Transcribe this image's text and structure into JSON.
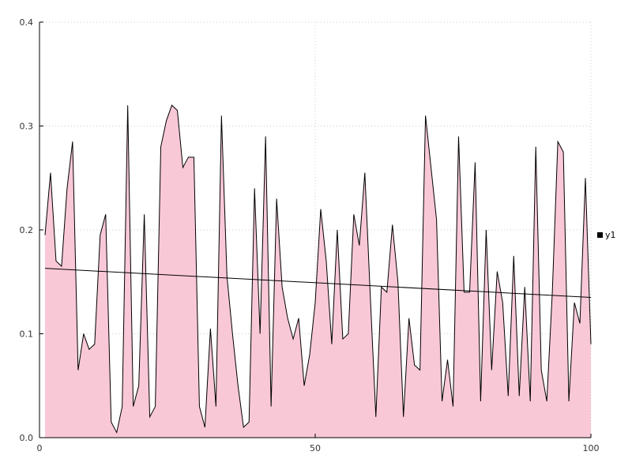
{
  "chart_data": {
    "type": "area",
    "title": "",
    "xlabel": "",
    "ylabel": "",
    "xlim": [
      0,
      100
    ],
    "ylim": [
      0,
      0.4
    ],
    "xticks": [
      0,
      50,
      100
    ],
    "xtick_labels": [
      "0",
      "50",
      "100"
    ],
    "yticks": [
      0,
      0.1,
      0.2,
      0.3,
      0.4
    ],
    "ytick_labels": [
      "0.0",
      "0.1",
      "0.2",
      "0.3",
      "0.4"
    ],
    "grid": true,
    "legend": {
      "label": "y1",
      "position": "right"
    },
    "colors": {
      "area_fill": "#f9c8d7",
      "line": "#000000",
      "trend": "#000000",
      "grid": "#cccccc",
      "axis": "#000000"
    },
    "series": [
      {
        "name": "y1",
        "x_start": 1,
        "values": [
          0.195,
          0.255,
          0.17,
          0.165,
          0.24,
          0.285,
          0.065,
          0.1,
          0.085,
          0.09,
          0.195,
          0.215,
          0.015,
          0.005,
          0.03,
          0.32,
          0.03,
          0.05,
          0.215,
          0.02,
          0.03,
          0.28,
          0.305,
          0.32,
          0.315,
          0.26,
          0.27,
          0.27,
          0.03,
          0.01,
          0.105,
          0.03,
          0.31,
          0.155,
          0.1,
          0.05,
          0.01,
          0.015,
          0.24,
          0.1,
          0.29,
          0.03,
          0.23,
          0.145,
          0.115,
          0.095,
          0.115,
          0.05,
          0.08,
          0.13,
          0.22,
          0.17,
          0.09,
          0.2,
          0.095,
          0.1,
          0.215,
          0.185,
          0.255,
          0.135,
          0.02,
          0.145,
          0.14,
          0.205,
          0.15,
          0.02,
          0.115,
          0.07,
          0.065,
          0.31,
          0.26,
          0.21,
          0.035,
          0.075,
          0.03,
          0.29,
          0.14,
          0.14,
          0.265,
          0.035,
          0.2,
          0.065,
          0.16,
          0.13,
          0.04,
          0.175,
          0.04,
          0.145,
          0.035,
          0.28,
          0.065,
          0.035,
          0.14,
          0.285,
          0.275,
          0.035,
          0.13,
          0.11,
          0.25,
          0.09
        ]
      }
    ],
    "trend_line": {
      "x": [
        1,
        100
      ],
      "y": [
        0.163,
        0.135
      ]
    }
  }
}
